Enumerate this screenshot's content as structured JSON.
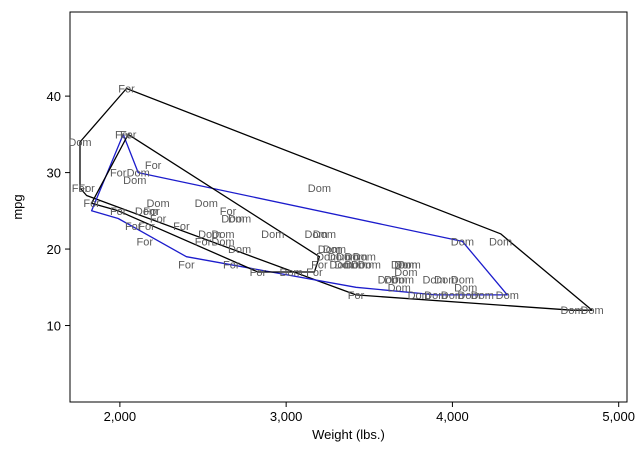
{
  "chart_data": {
    "type": "scatter",
    "title": "",
    "xlabel": "Weight (lbs.)",
    "ylabel": "mpg",
    "xlim": [
      1700,
      5050
    ],
    "ylim": [
      0,
      51
    ],
    "xticks": [
      2000,
      3000,
      4000,
      5000
    ],
    "xtick_labels": [
      "2,000",
      "3,000",
      "4,000",
      "5,000"
    ],
    "yticks": [
      10,
      20,
      30,
      40
    ],
    "ytick_labels": [
      "10",
      "20",
      "30",
      "40"
    ],
    "grid": false,
    "legend": "none",
    "colors": {
      "outer_hull": "#000000",
      "inner_hull": "#1c1ccc",
      "labels": "#5a5a5a",
      "plot_region": "#ffffff",
      "background": "#ffffff"
    },
    "points": [
      {
        "x": 2040,
        "y": 41,
        "label": "For"
      },
      {
        "x": 1760,
        "y": 34,
        "label": "Dom"
      },
      {
        "x": 2020,
        "y": 35,
        "label": "For"
      },
      {
        "x": 2050,
        "y": 35,
        "label": "For"
      },
      {
        "x": 1990,
        "y": 30,
        "label": "For"
      },
      {
        "x": 2110,
        "y": 30,
        "label": "Dom"
      },
      {
        "x": 2200,
        "y": 31,
        "label": "For"
      },
      {
        "x": 2090,
        "y": 29,
        "label": "Dom"
      },
      {
        "x": 3200,
        "y": 28,
        "label": "Dom"
      },
      {
        "x": 1760,
        "y": 28,
        "label": "For"
      },
      {
        "x": 1800,
        "y": 28,
        "label": "For"
      },
      {
        "x": 1830,
        "y": 26,
        "label": "For"
      },
      {
        "x": 1990,
        "y": 25,
        "label": "For"
      },
      {
        "x": 2230,
        "y": 26,
        "label": "Dom"
      },
      {
        "x": 2160,
        "y": 25,
        "label": "Dom"
      },
      {
        "x": 2190,
        "y": 25,
        "label": "For"
      },
      {
        "x": 2230,
        "y": 24,
        "label": "For"
      },
      {
        "x": 2520,
        "y": 26,
        "label": "Dom"
      },
      {
        "x": 2650,
        "y": 25,
        "label": "For"
      },
      {
        "x": 2680,
        "y": 24,
        "label": "Dom"
      },
      {
        "x": 2720,
        "y": 24,
        "label": "Dom"
      },
      {
        "x": 2080,
        "y": 23,
        "label": "For"
      },
      {
        "x": 2160,
        "y": 23,
        "label": "For"
      },
      {
        "x": 2370,
        "y": 23,
        "label": "For"
      },
      {
        "x": 2540,
        "y": 22,
        "label": "Dom"
      },
      {
        "x": 2620,
        "y": 22,
        "label": "Dom"
      },
      {
        "x": 2500,
        "y": 21,
        "label": "For"
      },
      {
        "x": 2620,
        "y": 21,
        "label": "Dom"
      },
      {
        "x": 2920,
        "y": 22,
        "label": "Dom"
      },
      {
        "x": 3180,
        "y": 22,
        "label": "Dom"
      },
      {
        "x": 3230,
        "y": 22,
        "label": "Dom"
      },
      {
        "x": 2150,
        "y": 21,
        "label": "For"
      },
      {
        "x": 2720,
        "y": 20,
        "label": "Dom"
      },
      {
        "x": 3260,
        "y": 20,
        "label": "Dom"
      },
      {
        "x": 3290,
        "y": 20,
        "label": "Dom"
      },
      {
        "x": 3250,
        "y": 19,
        "label": "Dom"
      },
      {
        "x": 3320,
        "y": 19,
        "label": "Dom"
      },
      {
        "x": 3370,
        "y": 19,
        "label": "Dom"
      },
      {
        "x": 3420,
        "y": 19,
        "label": "Dom"
      },
      {
        "x": 3470,
        "y": 19,
        "label": "Dom"
      },
      {
        "x": 3700,
        "y": 18,
        "label": "Dom"
      },
      {
        "x": 3720,
        "y": 18,
        "label": "Dom"
      },
      {
        "x": 3740,
        "y": 18,
        "label": "Dom"
      },
      {
        "x": 3200,
        "y": 18,
        "label": "For"
      },
      {
        "x": 3330,
        "y": 18,
        "label": "Dom"
      },
      {
        "x": 3360,
        "y": 18,
        "label": "Dom"
      },
      {
        "x": 3420,
        "y": 18,
        "label": "Dom"
      },
      {
        "x": 3460,
        "y": 18,
        "label": "Dom"
      },
      {
        "x": 3500,
        "y": 18,
        "label": "Dom"
      },
      {
        "x": 3720,
        "y": 17,
        "label": "Dom"
      },
      {
        "x": 3170,
        "y": 17,
        "label": "For"
      },
      {
        "x": 3030,
        "y": 17,
        "label": "Dom"
      },
      {
        "x": 2400,
        "y": 18,
        "label": "For"
      },
      {
        "x": 2670,
        "y": 18,
        "label": "For"
      },
      {
        "x": 2830,
        "y": 17,
        "label": "For"
      },
      {
        "x": 3620,
        "y": 16,
        "label": "Dom"
      },
      {
        "x": 3660,
        "y": 16,
        "label": "Dom"
      },
      {
        "x": 3700,
        "y": 16,
        "label": "Dom"
      },
      {
        "x": 3890,
        "y": 16,
        "label": "Dom"
      },
      {
        "x": 3960,
        "y": 16,
        "label": "Dom"
      },
      {
        "x": 4060,
        "y": 16,
        "label": "Dom"
      },
      {
        "x": 3680,
        "y": 15,
        "label": "Dom"
      },
      {
        "x": 4080,
        "y": 15,
        "label": "Dom"
      },
      {
        "x": 3420,
        "y": 14,
        "label": "For"
      },
      {
        "x": 3800,
        "y": 14,
        "label": "Dom"
      },
      {
        "x": 3900,
        "y": 14,
        "label": "Dom"
      },
      {
        "x": 4000,
        "y": 14,
        "label": "Dom"
      },
      {
        "x": 4100,
        "y": 14,
        "label": "Dom"
      },
      {
        "x": 4180,
        "y": 14,
        "label": "Dom"
      },
      {
        "x": 4330,
        "y": 14,
        "label": "Dom"
      },
      {
        "x": 4060,
        "y": 21,
        "label": "Dom"
      },
      {
        "x": 4290,
        "y": 21,
        "label": "Dom"
      },
      {
        "x": 4720,
        "y": 12,
        "label": "Dom"
      },
      {
        "x": 4840,
        "y": 12,
        "label": "Dom"
      }
    ],
    "hulls": [
      {
        "level": "outer",
        "color": "#000000",
        "vertices": [
          [
            2040,
            41
          ],
          [
            4290,
            22
          ],
          [
            4840,
            12
          ],
          [
            4720,
            12
          ],
          [
            3420,
            14
          ],
          [
            1800,
            27
          ],
          [
            1760,
            28
          ],
          [
            1760,
            34
          ]
        ]
      },
      {
        "level": "inner",
        "color": "#1c1ccc",
        "vertices": [
          [
            2020,
            35
          ],
          [
            2110,
            30
          ],
          [
            4060,
            21
          ],
          [
            4330,
            14
          ],
          [
            3900,
            14
          ],
          [
            3420,
            15
          ],
          [
            2400,
            19
          ],
          [
            1990,
            24
          ],
          [
            1830,
            25
          ]
        ]
      },
      {
        "level": "third",
        "color": "#000000",
        "vertices": [
          [
            2050,
            35
          ],
          [
            3200,
            19
          ],
          [
            3170,
            17
          ],
          [
            2830,
            17
          ],
          [
            1990,
            25
          ],
          [
            1830,
            26
          ]
        ]
      }
    ]
  }
}
